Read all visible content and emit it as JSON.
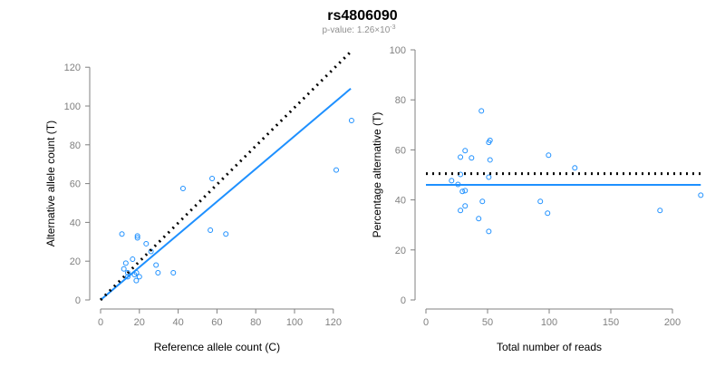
{
  "header": {
    "title": "rs4806090",
    "pvalue_prefix": "p-value: 1.26×10",
    "pvalue_exp": "-3"
  },
  "colors": {
    "points": "#1E90FF",
    "fit_line": "#1E90FF",
    "reference_line": "#000000",
    "axis": "#808080"
  },
  "chart_data": [
    {
      "type": "scatter",
      "title": "",
      "xlabel": "Reference allele count (C)",
      "ylabel": "Alternative allele count (T)",
      "xlim": [
        0,
        130
      ],
      "ylim": [
        0,
        120
      ],
      "xticks": [
        0,
        20,
        40,
        60,
        80,
        100,
        120
      ],
      "yticks": [
        0,
        20,
        40,
        60,
        80,
        100,
        120
      ],
      "points": [
        [
          11,
          34
        ],
        [
          19,
          33
        ],
        [
          19,
          32
        ],
        [
          23.5,
          29
        ],
        [
          26,
          25
        ],
        [
          16.5,
          21
        ],
        [
          13,
          19
        ],
        [
          12,
          16
        ],
        [
          28.6,
          18
        ],
        [
          29.6,
          14
        ],
        [
          37.5,
          14
        ],
        [
          14,
          14
        ],
        [
          18.5,
          14
        ],
        [
          17.5,
          13
        ],
        [
          20,
          12
        ],
        [
          14,
          12
        ],
        [
          18.4,
          10
        ],
        [
          56.6,
          36
        ],
        [
          64.6,
          34
        ],
        [
          42.5,
          57.5
        ],
        [
          57.5,
          62.6
        ],
        [
          121.5,
          67
        ],
        [
          129.4,
          92.5
        ]
      ],
      "lines": [
        {
          "name": "fit",
          "style": "solid",
          "x": [
            0,
            129
          ],
          "y": [
            0,
            109
          ]
        },
        {
          "name": "reference",
          "style": "dotted",
          "x": [
            0,
            129
          ],
          "y": [
            0,
            128
          ]
        }
      ]
    },
    {
      "type": "scatter",
      "title": "",
      "xlabel": "Total number of reads",
      "ylabel": "Percentage alternative (T)",
      "xlim": [
        0,
        223
      ],
      "ylim": [
        0,
        100
      ],
      "xticks": [
        0,
        50,
        100,
        150,
        200
      ],
      "yticks": [
        0,
        20,
        40,
        60,
        80,
        100
      ],
      "points": [
        [
          45,
          75.6
        ],
        [
          51,
          63
        ],
        [
          52,
          63.8
        ],
        [
          31.8,
          59.7
        ],
        [
          28,
          57.1
        ],
        [
          37,
          56.8
        ],
        [
          52,
          56
        ],
        [
          99.5,
          57.9
        ],
        [
          120.8,
          52.8
        ],
        [
          28,
          50.2
        ],
        [
          51,
          49.1
        ],
        [
          20.8,
          47.7
        ],
        [
          26,
          46.2
        ],
        [
          29.6,
          43.4
        ],
        [
          31.8,
          43.7
        ],
        [
          45.8,
          39.4
        ],
        [
          92.8,
          39.4
        ],
        [
          31.8,
          37.6
        ],
        [
          28,
          35.8
        ],
        [
          98.7,
          34.7
        ],
        [
          189.9,
          35.8
        ],
        [
          223,
          41.9
        ],
        [
          42.8,
          32.5
        ],
        [
          51,
          27.4
        ]
      ],
      "lines": [
        {
          "name": "fit",
          "style": "solid",
          "x": [
            0,
            223
          ],
          "y": [
            46,
            46
          ]
        },
        {
          "name": "reference",
          "style": "dotted",
          "x": [
            0,
            223
          ],
          "y": [
            50.5,
            50.5
          ]
        }
      ]
    }
  ]
}
